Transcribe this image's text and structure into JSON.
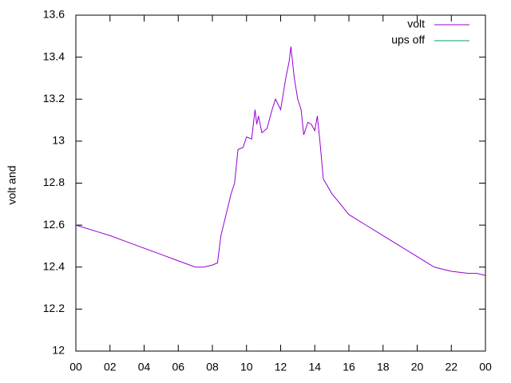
{
  "chart_data": {
    "type": "line",
    "ylabel": "volt and",
    "x": [
      0,
      1,
      2,
      3,
      4,
      5,
      6,
      7,
      7.5,
      8,
      8.3,
      8.5,
      8.8,
      9.1,
      9.3,
      9.5,
      9.8,
      10.0,
      10.3,
      10.5,
      10.6,
      10.7,
      10.9,
      11.2,
      11.5,
      11.7,
      12.0,
      12.3,
      12.5,
      12.6,
      12.8,
      13.0,
      13.2,
      13.35,
      13.6,
      13.8,
      14.0,
      14.15,
      14.3,
      14.5,
      15,
      15.5,
      16,
      17,
      18,
      19,
      20,
      21,
      22,
      23,
      23.5,
      24
    ],
    "series": [
      {
        "name": "volt",
        "color": "#9400d3",
        "values": [
          12.6,
          12.575,
          12.55,
          12.52,
          12.49,
          12.46,
          12.43,
          12.4,
          12.4,
          12.41,
          12.42,
          12.55,
          12.65,
          12.75,
          12.8,
          12.96,
          12.97,
          13.02,
          13.01,
          13.15,
          13.08,
          13.12,
          13.04,
          13.06,
          13.15,
          13.2,
          13.15,
          13.3,
          13.38,
          13.45,
          13.3,
          13.2,
          13.15,
          13.03,
          13.09,
          13.08,
          13.05,
          13.12,
          13.0,
          12.82,
          12.75,
          12.7,
          12.65,
          12.6,
          12.55,
          12.5,
          12.45,
          12.4,
          12.38,
          12.37,
          12.37,
          12.36
        ]
      },
      {
        "name": "ups off",
        "color": "#009e73",
        "values": [
          null,
          null,
          null,
          null,
          null,
          null,
          null,
          null,
          null,
          null,
          null,
          null,
          null,
          null,
          null,
          null,
          null,
          null,
          null,
          null,
          null,
          null,
          null,
          null,
          null,
          null,
          null,
          null,
          null,
          null,
          null,
          null,
          null,
          null,
          null,
          null,
          null,
          null,
          null,
          null,
          null,
          null,
          null,
          null,
          null,
          null,
          null,
          null,
          null,
          null,
          null,
          null
        ]
      }
    ],
    "xlim": [
      0,
      24
    ],
    "xticks": [
      {
        "value": 0,
        "label": "00"
      },
      {
        "value": 2,
        "label": "02"
      },
      {
        "value": 4,
        "label": "04"
      },
      {
        "value": 6,
        "label": "06"
      },
      {
        "value": 8,
        "label": "08"
      },
      {
        "value": 10,
        "label": "10"
      },
      12,
      14,
      16,
      18,
      20,
      22,
      {
        "value": 24,
        "label": "00"
      }
    ],
    "ylim": [
      12,
      13.6
    ],
    "yticks": [
      12,
      12.2,
      12.4,
      12.6,
      12.8,
      13,
      13.2,
      13.4,
      13.6
    ],
    "legend": "top right"
  }
}
